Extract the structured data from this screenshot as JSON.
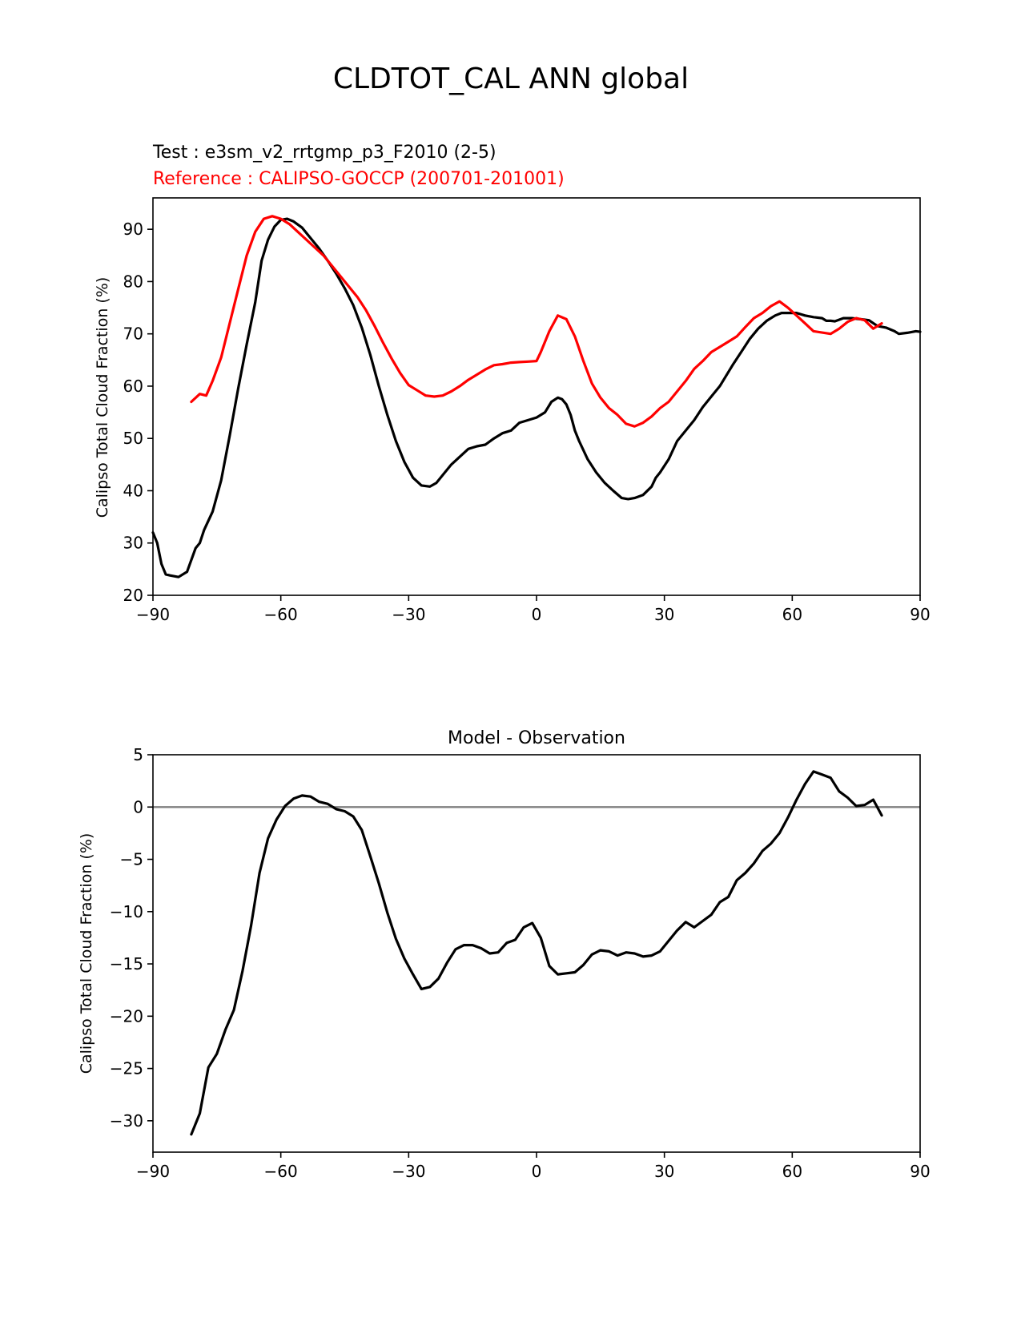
{
  "figure": {
    "suptitle": "CLDTOT_CAL ANN global"
  },
  "colors": {
    "test": "#000000",
    "reference": "#ff0000",
    "zero_line": "#808080"
  },
  "chart_data": [
    {
      "type": "line",
      "title_test": "Test : e3sm_v2_rrtgmp_p3_F2010 (2-5)",
      "title_reference": "Reference : CALIPSO-GOCCP (200701-201001)",
      "xlabel": "",
      "ylabel": "Calipso Total Cloud Fraction (%)",
      "xlim": [
        -90,
        90
      ],
      "ylim": [
        20,
        96
      ],
      "xticks": [
        -90,
        -60,
        -30,
        0,
        30,
        60,
        90
      ],
      "xtick_labels": [
        "−90",
        "−60",
        "−30",
        "0",
        "30",
        "60",
        "90"
      ],
      "yticks": [
        20,
        30,
        40,
        50,
        60,
        70,
        80,
        90
      ],
      "ytick_labels": [
        "20",
        "30",
        "40",
        "50",
        "60",
        "70",
        "80",
        "90"
      ],
      "series": [
        {
          "name": "Test",
          "color": "#000000",
          "x": [
            -90,
            -89,
            -88,
            -87,
            -86,
            -84,
            -82,
            -80,
            -79,
            -78,
            -76,
            -74,
            -72,
            -70,
            -68,
            -66,
            -64.5,
            -63,
            -61.5,
            -60,
            -58.5,
            -57,
            -55,
            -53,
            -51,
            -49,
            -47,
            -45,
            -43,
            -41,
            -39,
            -37,
            -35,
            -33,
            -31,
            -29,
            -27,
            -25,
            -23.5,
            -22,
            -20,
            -18,
            -16,
            -14,
            -12,
            -10,
            -8,
            -6,
            -4,
            -2,
            0,
            2,
            3.5,
            5,
            6,
            7,
            8,
            9,
            10,
            12,
            14,
            16,
            18,
            20,
            21.5,
            23,
            25,
            27,
            28,
            29,
            31,
            33,
            35,
            37,
            39,
            41,
            43,
            44.5,
            46,
            48,
            50,
            52,
            54,
            56,
            57.5,
            59,
            61,
            63,
            65,
            67,
            68,
            69,
            70,
            72,
            74,
            76,
            78,
            80,
            82,
            84,
            85,
            87,
            89,
            90
          ],
          "values": [
            32,
            30,
            26,
            24,
            23.8,
            23.5,
            24.5,
            29,
            30,
            32.5,
            36,
            42,
            50.5,
            59.5,
            68,
            76,
            84,
            88,
            90.5,
            91.8,
            92,
            91.5,
            90.3,
            88.3,
            86.3,
            84,
            81.5,
            78.7,
            75.5,
            71.2,
            66,
            60,
            54.5,
            49.5,
            45.5,
            42.5,
            41,
            40.8,
            41.5,
            43,
            45,
            46.5,
            48,
            48.5,
            48.8,
            50,
            51,
            51.5,
            53,
            53.5,
            54,
            55,
            57,
            57.8,
            57.5,
            56.5,
            54.5,
            51.5,
            49.5,
            46,
            43.5,
            41.5,
            40,
            38.6,
            38.4,
            38.6,
            39.2,
            40.8,
            42.5,
            43.5,
            46,
            49.5,
            51.5,
            53.5,
            56,
            58,
            60,
            62,
            64,
            66.5,
            69,
            71,
            72.5,
            73.5,
            74,
            74,
            74,
            73.5,
            73.2,
            73,
            72.5,
            72.5,
            72.4,
            73,
            73,
            72.8,
            72.6,
            71.5,
            71.2,
            70.5,
            70,
            70.2,
            70.5,
            70.4
          ]
        },
        {
          "name": "Reference",
          "color": "#ff0000",
          "x": [
            -81,
            -79,
            -77.5,
            -76,
            -74,
            -72,
            -70,
            -68,
            -66,
            -64,
            -62,
            -60,
            -58,
            -56,
            -54,
            -52,
            -50,
            -48,
            -46,
            -44,
            -42,
            -40,
            -38,
            -36,
            -34,
            -32,
            -30,
            -28,
            -26,
            -24,
            -22,
            -20,
            -18,
            -16,
            -14,
            -12,
            -10,
            -8,
            -6,
            -4,
            -2,
            0,
            1,
            3,
            5,
            7,
            9,
            11,
            13,
            15,
            17,
            19,
            21,
            23,
            25,
            27,
            29,
            31,
            33,
            35,
            37,
            39,
            41,
            43,
            45,
            47,
            49,
            51,
            53,
            55,
            57,
            59,
            61,
            63,
            65,
            69,
            71,
            73,
            75,
            77,
            79,
            81
          ],
          "values": [
            57,
            58.5,
            58.2,
            61,
            65.5,
            72,
            78.5,
            85,
            89.5,
            92,
            92.5,
            92,
            91,
            89.5,
            88,
            86.5,
            85,
            83,
            81,
            79,
            77,
            74.5,
            71.5,
            68.3,
            65.3,
            62.5,
            60.2,
            59.2,
            58.2,
            58,
            58.2,
            59,
            60,
            61.2,
            62.2,
            63.2,
            64,
            64.2,
            64.5,
            64.6,
            64.7,
            64.8,
            66.5,
            70.5,
            73.5,
            72.8,
            69.5,
            64.8,
            60.5,
            57.8,
            55.8,
            54.5,
            52.8,
            52.3,
            53,
            54.2,
            55.8,
            57,
            59,
            61,
            63.3,
            64.8,
            66.5,
            67.5,
            68.5,
            69.5,
            71.3,
            73,
            74,
            75.3,
            76.2,
            75,
            73.5,
            72,
            70.5,
            70,
            71,
            72.3,
            73,
            72.6,
            71,
            72
          ]
        }
      ]
    },
    {
      "type": "line",
      "title": "Model - Observation",
      "xlabel": "",
      "ylabel": "Calipso Total Cloud Fraction (%)",
      "xlim": [
        -90,
        90
      ],
      "ylim": [
        -33,
        5
      ],
      "xticks": [
        -90,
        -60,
        -30,
        0,
        30,
        60,
        90
      ],
      "xtick_labels": [
        "−90",
        "−60",
        "−30",
        "0",
        "30",
        "60",
        "90"
      ],
      "yticks": [
        5,
        0,
        -5,
        -10,
        -15,
        -20,
        -25,
        -30
      ],
      "ytick_labels": [
        "5",
        "0",
        "−5",
        "−10",
        "−15",
        "−20",
        "−25",
        "−30"
      ],
      "zero_line": 0,
      "series": [
        {
          "name": "Model - Observation",
          "color": "#000000",
          "x": [
            -81,
            -79,
            -77,
            -75,
            -73,
            -71,
            -69,
            -67,
            -65,
            -63,
            -61,
            -59,
            -57,
            -55,
            -53,
            -51,
            -49,
            -47,
            -45,
            -43,
            -41,
            -39,
            -37,
            -35,
            -33,
            -31,
            -29,
            -27,
            -25,
            -23,
            -21,
            -19,
            -17,
            -15,
            -13,
            -11,
            -9,
            -7,
            -5,
            -3,
            -1,
            1,
            3,
            5,
            7,
            9,
            11,
            13,
            15,
            17,
            19,
            21,
            23,
            25,
            27,
            29,
            31,
            33,
            35,
            37,
            39,
            41,
            43,
            45,
            47,
            49,
            51,
            53,
            55,
            57,
            59,
            61,
            63,
            65,
            67,
            69,
            71,
            73,
            75,
            77,
            79,
            81
          ],
          "values": [
            -31.3,
            -29.3,
            -24.9,
            -23.6,
            -21.3,
            -19.4,
            -15.7,
            -11.4,
            -6.3,
            -3,
            -1.2,
            0.1,
            0.8,
            1.1,
            1,
            0.5,
            0.3,
            -0.2,
            -0.4,
            -0.9,
            -2.2,
            -4.7,
            -7.3,
            -10.1,
            -12.6,
            -14.5,
            -16,
            -17.4,
            -17.2,
            -16.4,
            -14.9,
            -13.6,
            -13.2,
            -13.2,
            -13.5,
            -14,
            -13.9,
            -13,
            -12.7,
            -11.5,
            -11.1,
            -12.5,
            -15.2,
            -16,
            -15.9,
            -15.8,
            -15.1,
            -14.1,
            -13.7,
            -13.8,
            -14.2,
            -13.9,
            -14,
            -14.3,
            -14.2,
            -13.8,
            -12.8,
            -11.8,
            -11,
            -11.5,
            -10.9,
            -10.3,
            -9.1,
            -8.6,
            -7,
            -6.3,
            -5.4,
            -4.2,
            -3.5,
            -2.5,
            -1,
            0.7,
            2.2,
            3.4,
            3.1,
            2.8,
            1.5,
            0.9,
            0.1,
            0.2,
            0.7,
            -0.8
          ]
        }
      ]
    }
  ]
}
